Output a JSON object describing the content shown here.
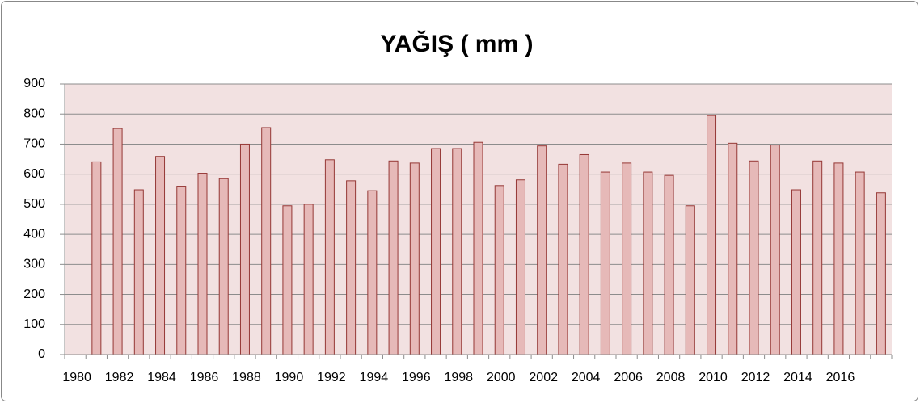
{
  "chart_data": {
    "type": "bar",
    "title": "YAĞIŞ ( mm )",
    "categories": [
      "1980",
      null,
      "1982",
      null,
      "1984",
      null,
      "1986",
      null,
      "1988",
      null,
      "1990",
      null,
      "1992",
      null,
      "1994",
      null,
      "1996",
      null,
      "1998",
      null,
      "2000",
      null,
      "2002",
      null,
      "2004",
      null,
      "2006",
      null,
      "2008",
      null,
      "2010",
      null,
      "2012",
      null,
      "2014",
      null,
      "2016",
      null,
      null
    ],
    "values": [
      null,
      641,
      752,
      548,
      659,
      560,
      603,
      585,
      700,
      755,
      495,
      500,
      648,
      578,
      545,
      644,
      637,
      685,
      685,
      706,
      562,
      581,
      694,
      633,
      665,
      607,
      637,
      607,
      596,
      495,
      795,
      703,
      644,
      697,
      548,
      644,
      637,
      607,
      538
    ],
    "color": "#e6b9b8",
    "edge_color": "#953735",
    "background": "#f2e1e1",
    "ylim": [
      0,
      900
    ],
    "yticks": [
      0,
      100,
      200,
      300,
      400,
      500,
      600,
      700,
      800,
      900
    ],
    "grid": true
  }
}
